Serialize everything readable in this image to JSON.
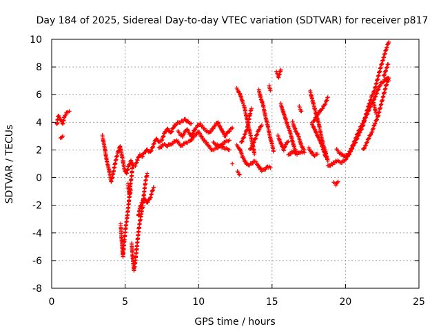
{
  "chart_data": {
    "type": "scatter",
    "title": "Day 184 of 2025, Sidereal Day-to-day VTEC variation (SDTVAR) for receiver p817",
    "xlabel": "GPS time / hours",
    "ylabel": "SDTVAR / TECUs",
    "xlim": [
      0,
      25
    ],
    "ylim": [
      -8,
      10
    ],
    "xticks": [
      "0",
      "5",
      "10",
      "15",
      "20",
      "25"
    ],
    "yticks": [
      "-8",
      "-6",
      "-4",
      "-2",
      "0",
      "2",
      "4",
      "6",
      "8",
      "10"
    ],
    "grid": true,
    "marker": "+",
    "color": "#ff0000",
    "series": [
      {
        "segments": [
          [
            [
              0.35,
              3.8
            ],
            [
              0.45,
              4.5
            ],
            [
              0.6,
              4.2
            ],
            [
              0.75,
              3.9
            ],
            [
              0.9,
              4.5
            ],
            [
              1.05,
              4.7
            ],
            [
              1.2,
              4.8
            ]
          ],
          [
            [
              0.6,
              2.8
            ],
            [
              0.75,
              3.0
            ]
          ],
          [
            [
              3.45,
              3.0
            ],
            [
              3.6,
              2.2
            ],
            [
              3.75,
              1.2
            ],
            [
              3.9,
              0.6
            ],
            [
              4.05,
              -0.3
            ],
            [
              4.2,
              0.4
            ],
            [
              4.35,
              1.2
            ],
            [
              4.5,
              1.8
            ],
            [
              4.65,
              2.3
            ],
            [
              4.8,
              1.5
            ],
            [
              4.95,
              0.6
            ],
            [
              5.1,
              0.3
            ],
            [
              5.25,
              0.9
            ],
            [
              5.4,
              1.2
            ],
            [
              5.55,
              0.8
            ],
            [
              5.7,
              0.9
            ],
            [
              5.85,
              1.3
            ],
            [
              6.0,
              1.7
            ],
            [
              6.15,
              1.5
            ],
            [
              6.3,
              1.8
            ],
            [
              6.5,
              2.0
            ],
            [
              6.7,
              1.8
            ],
            [
              6.9,
              2.3
            ],
            [
              7.1,
              2.8
            ],
            [
              7.3,
              2.6
            ],
            [
              7.5,
              2.7
            ],
            [
              7.7,
              3.3
            ],
            [
              7.9,
              3.5
            ],
            [
              8.1,
              3.2
            ],
            [
              8.3,
              3.7
            ],
            [
              8.5,
              3.9
            ],
            [
              8.7,
              4.0
            ],
            [
              8.9,
              4.1
            ],
            [
              9.1,
              4.2
            ],
            [
              9.3,
              4.0
            ],
            [
              9.5,
              3.9
            ]
          ],
          [
            [
              4.7,
              -3.4
            ],
            [
              4.75,
              -4.3
            ],
            [
              4.8,
              -5.0
            ],
            [
              4.85,
              -5.7
            ],
            [
              4.95,
              -4.5
            ],
            [
              5.05,
              -3.5
            ],
            [
              5.15,
              -2.8
            ],
            [
              5.25,
              -1.8
            ],
            [
              5.35,
              -0.6
            ],
            [
              5.45,
              0.2
            ],
            [
              5.5,
              1.0
            ]
          ],
          [
            [
              5.45,
              -4.8
            ],
            [
              5.5,
              -5.6
            ],
            [
              5.55,
              -6.2
            ],
            [
              5.6,
              -6.7
            ],
            [
              5.7,
              -6.0
            ],
            [
              5.8,
              -5.0
            ],
            [
              5.9,
              -4.0
            ],
            [
              6.0,
              -3.2
            ],
            [
              6.1,
              -2.6
            ],
            [
              6.2,
              -2.0
            ],
            [
              6.3,
              -1.0
            ],
            [
              6.4,
              -0.2
            ],
            [
              6.5,
              0.3
            ]
          ],
          [
            [
              5.9,
              -2.8
            ],
            [
              6.0,
              -2.2
            ],
            [
              6.15,
              -1.8
            ],
            [
              6.3,
              -1.5
            ],
            [
              6.5,
              -1.8
            ],
            [
              6.7,
              -1.5
            ],
            [
              6.85,
              -1.0
            ],
            [
              6.95,
              -0.7
            ]
          ],
          [
            [
              5.2,
              -0.5
            ],
            [
              5.3,
              -1.3
            ],
            [
              5.4,
              -0.9
            ]
          ],
          [
            [
              7.3,
              2.1
            ],
            [
              7.6,
              2.4
            ],
            [
              7.9,
              2.3
            ],
            [
              8.2,
              2.5
            ],
            [
              8.5,
              2.7
            ],
            [
              8.8,
              2.3
            ],
            [
              9.1,
              2.5
            ],
            [
              9.4,
              2.6
            ],
            [
              9.7,
              3.0
            ],
            [
              10.0,
              3.3
            ],
            [
              10.3,
              2.8
            ],
            [
              10.6,
              2.4
            ],
            [
              10.9,
              2.0
            ],
            [
              11.2,
              2.1
            ],
            [
              11.5,
              2.3
            ],
            [
              11.8,
              2.6
            ],
            [
              12.1,
              2.7
            ]
          ],
          [
            [
              8.6,
              3.3
            ],
            [
              8.9,
              3.0
            ],
            [
              9.2,
              3.5
            ],
            [
              9.5,
              3.0
            ],
            [
              9.8,
              3.6
            ],
            [
              10.1,
              3.9
            ],
            [
              10.4,
              3.5
            ],
            [
              10.7,
              3.2
            ],
            [
              11.0,
              3.6
            ],
            [
              11.3,
              4.0
            ],
            [
              11.5,
              3.6
            ],
            [
              11.8,
              3.0
            ],
            [
              12.0,
              3.3
            ],
            [
              12.3,
              3.6
            ]
          ],
          [
            [
              11.0,
              2.5
            ],
            [
              11.4,
              2.3
            ],
            [
              11.8,
              2.1
            ],
            [
              12.1,
              2.0
            ]
          ],
          [
            [
              12.3,
              1.0
            ]
          ],
          [
            [
              12.65,
              0.4
            ],
            [
              12.8,
              0.2
            ]
          ],
          [
            [
              12.6,
              6.4
            ],
            [
              12.8,
              6.1
            ],
            [
              12.95,
              5.6
            ],
            [
              13.1,
              5.2
            ],
            [
              13.25,
              4.4
            ],
            [
              13.4,
              3.7
            ],
            [
              13.55,
              3.0
            ],
            [
              13.7,
              2.3
            ],
            [
              13.8,
              1.7
            ]
          ],
          [
            [
              12.9,
              2.5
            ],
            [
              13.1,
              3.0
            ],
            [
              13.3,
              3.5
            ],
            [
              13.4,
              4.0
            ],
            [
              13.5,
              4.6
            ],
            [
              13.6,
              5.0
            ]
          ],
          [
            [
              12.6,
              2.3
            ],
            [
              12.8,
              2.1
            ],
            [
              13.0,
              1.5
            ],
            [
              13.2,
              1.1
            ],
            [
              13.4,
              0.9
            ],
            [
              13.6,
              1.0
            ],
            [
              13.8,
              1.2
            ]
          ],
          [
            [
              14.1,
              6.3
            ],
            [
              14.25,
              5.7
            ],
            [
              14.4,
              5.2
            ],
            [
              14.55,
              4.4
            ],
            [
              14.7,
              3.8
            ],
            [
              14.85,
              3.0
            ],
            [
              15.0,
              2.4
            ],
            [
              15.1,
              1.9
            ]
          ],
          [
            [
              13.5,
              2.0
            ],
            [
              13.7,
              2.4
            ],
            [
              13.9,
              2.9
            ],
            [
              14.1,
              3.5
            ],
            [
              14.3,
              3.8
            ]
          ],
          [
            [
              13.9,
              1.1
            ],
            [
              14.1,
              0.8
            ],
            [
              14.3,
              0.5
            ],
            [
              14.5,
              0.6
            ],
            [
              14.7,
              0.8
            ],
            [
              14.9,
              0.7
            ]
          ],
          [
            [
              14.8,
              6.6
            ],
            [
              14.9,
              6.3
            ]
          ],
          [
            [
              15.3,
              7.6
            ],
            [
              15.45,
              7.3
            ],
            [
              15.6,
              7.8
            ]
          ],
          [
            [
              15.6,
              5.3
            ],
            [
              15.75,
              4.8
            ],
            [
              15.9,
              4.3
            ],
            [
              16.05,
              3.8
            ],
            [
              16.2,
              3.4
            ],
            [
              16.35,
              2.8
            ],
            [
              16.5,
              2.2
            ],
            [
              16.65,
              1.8
            ]
          ],
          [
            [
              15.4,
              3.0
            ],
            [
              15.6,
              2.5
            ],
            [
              15.8,
              2.0
            ],
            [
              15.9,
              2.4
            ],
            [
              16.1,
              2.6
            ]
          ],
          [
            [
              16.1,
              1.6
            ],
            [
              16.4,
              1.9
            ],
            [
              16.7,
              1.7
            ],
            [
              17.0,
              1.9
            ],
            [
              17.2,
              1.8
            ]
          ],
          [
            [
              16.85,
              5.1
            ],
            [
              17.0,
              4.8
            ]
          ],
          [
            [
              16.4,
              4.0
            ],
            [
              16.6,
              3.4
            ],
            [
              16.8,
              3.0
            ],
            [
              17.0,
              2.3
            ],
            [
              17.2,
              2.0
            ]
          ],
          [
            [
              17.6,
              6.2
            ],
            [
              17.75,
              5.6
            ],
            [
              17.9,
              5.0
            ],
            [
              18.05,
              4.4
            ],
            [
              18.2,
              3.8
            ],
            [
              18.35,
              3.0
            ],
            [
              18.5,
              2.3
            ],
            [
              18.65,
              1.8
            ],
            [
              18.8,
              1.2
            ]
          ],
          [
            [
              17.7,
              3.9
            ],
            [
              17.9,
              3.5
            ],
            [
              18.1,
              3.0
            ],
            [
              18.3,
              2.6
            ],
            [
              18.5,
              2.0
            ],
            [
              18.65,
              1.5
            ]
          ],
          [
            [
              17.8,
              4.0
            ],
            [
              18.0,
              4.4
            ],
            [
              18.2,
              4.7
            ],
            [
              18.4,
              5.0
            ],
            [
              18.6,
              5.3
            ],
            [
              18.8,
              5.8
            ]
          ],
          [
            [
              17.5,
              2.1
            ],
            [
              17.7,
              1.8
            ],
            [
              17.9,
              1.6
            ],
            [
              18.1,
              1.7
            ]
          ],
          [
            [
              19.2,
              -0.4
            ],
            [
              19.35,
              -0.5
            ],
            [
              19.5,
              -0.3
            ]
          ],
          [
            [
              18.8,
              0.8
            ],
            [
              19.1,
              1.0
            ],
            [
              19.4,
              1.2
            ],
            [
              19.7,
              1.1
            ],
            [
              20.0,
              1.3
            ],
            [
              20.2,
              1.6
            ],
            [
              20.4,
              2.0
            ],
            [
              20.6,
              2.4
            ],
            [
              20.8,
              2.9
            ],
            [
              21.0,
              3.3
            ],
            [
              21.2,
              3.8
            ],
            [
              21.4,
              4.6
            ],
            [
              21.6,
              5.3
            ],
            [
              21.8,
              5.9
            ],
            [
              22.0,
              6.4
            ],
            [
              22.2,
              7.2
            ],
            [
              22.4,
              8.0
            ],
            [
              22.6,
              8.7
            ],
            [
              22.8,
              9.4
            ],
            [
              22.95,
              9.8
            ]
          ],
          [
            [
              19.4,
              2.0
            ],
            [
              19.7,
              1.7
            ],
            [
              20.0,
              1.5
            ],
            [
              20.2,
              1.7
            ],
            [
              20.4,
              2.1
            ],
            [
              20.6,
              2.6
            ],
            [
              20.8,
              3.1
            ],
            [
              21.0,
              3.6
            ],
            [
              21.2,
              4.0
            ],
            [
              21.4,
              4.4
            ],
            [
              21.6,
              4.9
            ],
            [
              21.8,
              5.4
            ],
            [
              22.0,
              5.8
            ],
            [
              22.2,
              6.3
            ],
            [
              22.4,
              6.8
            ],
            [
              22.6,
              7.0
            ],
            [
              22.8,
              7.2
            ],
            [
              22.95,
              7.0
            ]
          ],
          [
            [
              21.2,
              2.0
            ],
            [
              21.4,
              2.4
            ],
            [
              21.6,
              2.9
            ],
            [
              21.8,
              3.3
            ],
            [
              22.0,
              3.9
            ],
            [
              22.2,
              4.4
            ],
            [
              22.4,
              5.2
            ],
            [
              22.6,
              6.0
            ],
            [
              22.8,
              6.8
            ],
            [
              22.95,
              7.2
            ]
          ],
          [
            [
              22.6,
              7.3
            ],
            [
              22.75,
              7.8
            ],
            [
              22.9,
              8.2
            ]
          ],
          [
            [
              21.9,
              5.5
            ],
            [
              22.0,
              5.0
            ],
            [
              22.1,
              4.6
            ]
          ]
        ]
      }
    ]
  }
}
